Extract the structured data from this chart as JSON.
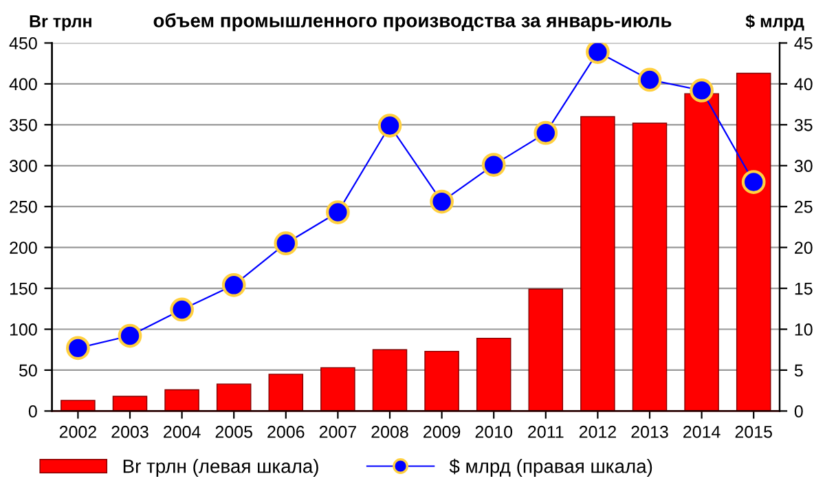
{
  "chart_data": {
    "type": "bar",
    "title": "объем промышленного производства за январь-июль",
    "ylabel": "Br трлн",
    "y2label": "$ млрд",
    "categories": [
      "2002",
      "2003",
      "2004",
      "2005",
      "2006",
      "2007",
      "2008",
      "2009",
      "2010",
      "2011",
      "2012",
      "2013",
      "2014",
      "2015"
    ],
    "series": [
      {
        "name": "Br трлн (левая шкала)",
        "color": "#ff0000",
        "values": [
          13,
          18,
          26,
          33,
          45,
          53,
          75,
          73,
          89,
          149,
          360,
          352,
          388,
          413
        ]
      },
      {
        "name": "$ млрд (правая шкала)",
        "type": "line",
        "axis": "y2",
        "color": "#0000ff",
        "marker": "circle",
        "values": [
          7.7,
          9.2,
          12.4,
          15.4,
          20.5,
          24.3,
          34.9,
          25.6,
          30.1,
          34.0,
          43.9,
          40.5,
          39.2,
          28.0
        ]
      }
    ],
    "ylim": [
      0,
      450
    ],
    "yticks": [
      0,
      50,
      100,
      150,
      200,
      250,
      300,
      350,
      400,
      450
    ],
    "y2lim": [
      0,
      45
    ],
    "y2ticks": [
      0,
      5,
      10,
      15,
      20,
      25,
      30,
      35,
      40,
      45
    ],
    "grid": "y",
    "legend": "bottom"
  }
}
